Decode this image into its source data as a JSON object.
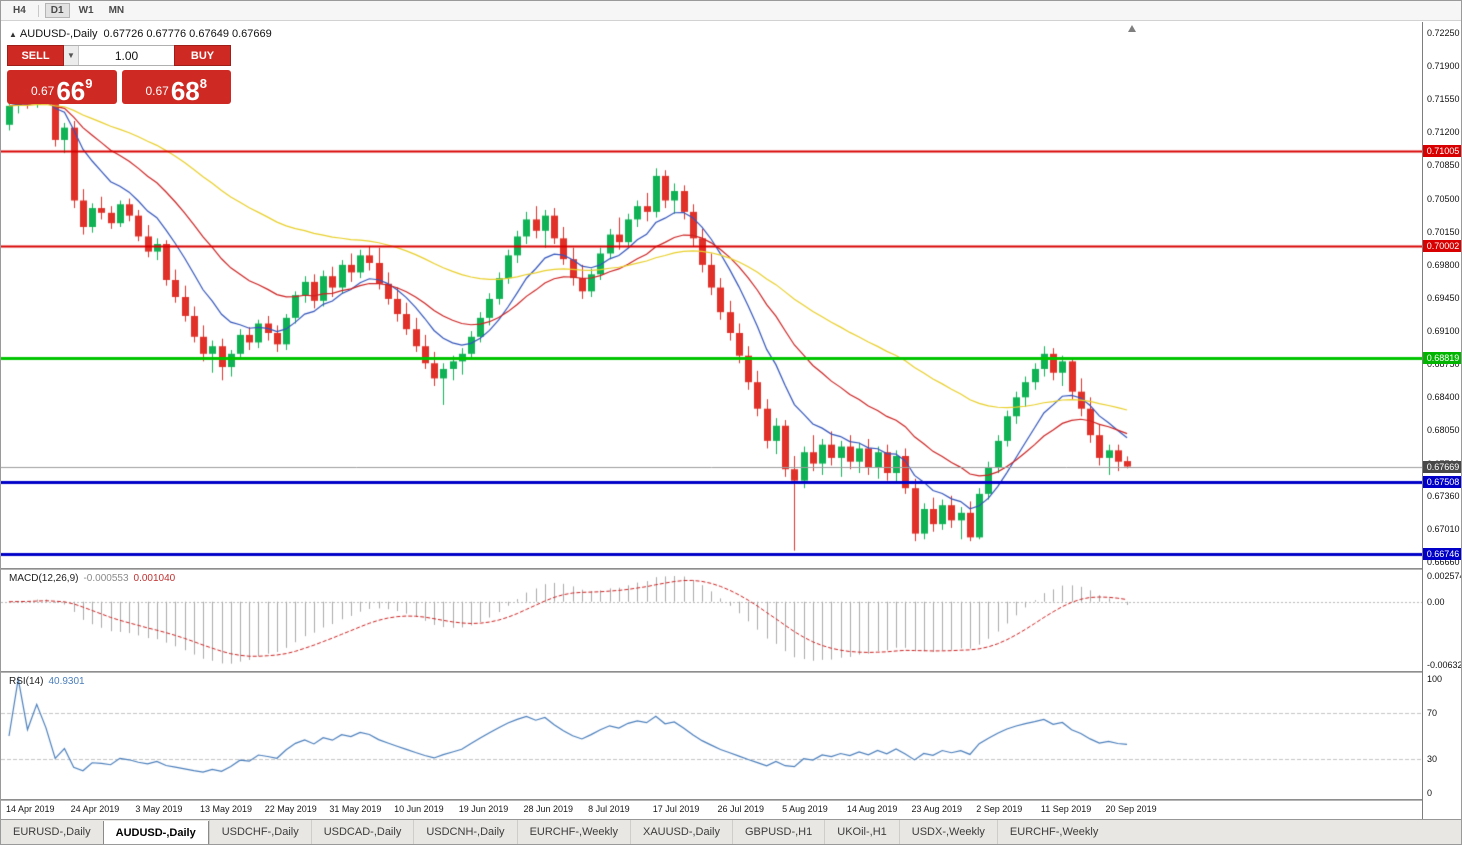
{
  "toolbar": {
    "timeframes": [
      "H4",
      "D1",
      "W1",
      "MN"
    ],
    "active": "D1"
  },
  "header": {
    "symbol": "AUDUSD-,Daily",
    "ohlc": "0.67726 0.67776 0.67649 0.67669"
  },
  "trade_panel": {
    "sell_label": "SELL",
    "buy_label": "BUY",
    "volume": "1.00",
    "sell_price_small": "0.67",
    "sell_price_big": "66",
    "sell_price_sup": "9",
    "buy_price_small": "0.67",
    "buy_price_big": "68",
    "buy_price_sup": "8"
  },
  "indicators": {
    "macd": {
      "name": "MACD(12,26,9)",
      "value_main": "-0.000553",
      "value_signal": "0.001040",
      "scale": [
        {
          "text": "0.0025745",
          "value": 0.0025745
        },
        {
          "text": "0.00",
          "value": 0
        },
        {
          "text": "-0.0063286",
          "value": -0.0063286
        }
      ]
    },
    "rsi": {
      "name": "RSI(14)",
      "value": "40.9301",
      "scale": [
        {
          "text": "100",
          "value": 100
        },
        {
          "text": "70",
          "value": 70
        },
        {
          "text": "30",
          "value": 30
        },
        {
          "text": "0",
          "value": 0
        }
      ]
    }
  },
  "tabs": [
    "EURUSD-,Daily",
    "AUDUSD-,Daily",
    "USDCHF-,Daily",
    "USDCAD-,Daily",
    "USDCNH-,Daily",
    "EURCHF-,Weekly",
    "XAUUSD-,Daily",
    "GBPUSD-,H1",
    "UKOil-,H1",
    "USDX-,Weekly",
    "EURCHF-,Weekly"
  ],
  "active_tab_index": 1,
  "chart_data": {
    "type": "candlestick",
    "symbol": "AUDUSD-",
    "timeframe": "Daily",
    "y_range": [
      0.6666,
      0.7225
    ],
    "price_scale_ticks": [
      "0.72250",
      "0.71900",
      "0.71550",
      "0.71200",
      "0.70850",
      "0.70500",
      "0.70150",
      "0.69800",
      "0.69450",
      "0.69100",
      "0.68750",
      "0.68400",
      "0.68050",
      "0.67700",
      "0.67360",
      "0.67010",
      "0.66660"
    ],
    "hlines": [
      {
        "value": 0.71005,
        "color": "#d80000",
        "width": 2,
        "badge": "0.71005",
        "badge_bg": "#d80000"
      },
      {
        "value": 0.70002,
        "color": "#d80000",
        "width": 2,
        "badge": "0.70002",
        "badge_bg": "#d80000"
      },
      {
        "value": 0.68819,
        "color": "#00c400",
        "width": 3,
        "badge": "0.68819",
        "badge_bg": "#00b400"
      },
      {
        "value": 0.67508,
        "color": "#0000c8",
        "width": 3,
        "badge": "0.67508",
        "badge_bg": "#0000c8"
      },
      {
        "value": 0.66746,
        "color": "#0000c8",
        "width": 3,
        "badge": "0.66746",
        "badge_bg": "#0000c8"
      }
    ],
    "current_price": {
      "value": 0.67669,
      "badge": "0.67669",
      "badge_bg": "#484848",
      "line_color": "#9c9c9c"
    },
    "moving_averages": [
      {
        "period": 9,
        "method": "ema",
        "color": "#3355bb"
      },
      {
        "period": 20,
        "method": "ema",
        "color": "#cc2222"
      },
      {
        "period": 50,
        "method": "ema",
        "color": "#e8cf2a"
      }
    ],
    "macd": {
      "fast": 12,
      "slow": 26,
      "signal": 9,
      "range": [
        -0.0063286,
        0.0025745
      ],
      "hist_color": "#a9a9a9",
      "signal_color": "#cc2222"
    },
    "rsi": {
      "period": 14,
      "levels": [
        70,
        30
      ],
      "range": [
        0,
        100
      ],
      "current": 40.9301,
      "line_color": "#4a7ebb"
    },
    "colors": {
      "up": "#0fb255",
      "down": "#e03028"
    },
    "date_labels": [
      {
        "index": 0,
        "label": "14 Apr 2019"
      },
      {
        "index": 7,
        "label": "24 Apr 2019"
      },
      {
        "index": 14,
        "label": "3 May 2019"
      },
      {
        "index": 21,
        "label": "13 May 2019"
      },
      {
        "index": 28,
        "label": "22 May 2019"
      },
      {
        "index": 35,
        "label": "31 May 2019"
      },
      {
        "index": 42,
        "label": "10 Jun 2019"
      },
      {
        "index": 49,
        "label": "19 Jun 2019"
      },
      {
        "index": 56,
        "label": "28 Jun 2019"
      },
      {
        "index": 63,
        "label": "8 Jul 2019"
      },
      {
        "index": 70,
        "label": "17 Jul 2019"
      },
      {
        "index": 77,
        "label": "26 Jul 2019"
      },
      {
        "index": 84,
        "label": "5 Aug 2019"
      },
      {
        "index": 91,
        "label": "14 Aug 2019"
      },
      {
        "index": 98,
        "label": "23 Aug 2019"
      },
      {
        "index": 105,
        "label": "2 Sep 2019"
      },
      {
        "index": 112,
        "label": "11 Sep 2019"
      },
      {
        "index": 119,
        "label": "20 Sep 2019"
      }
    ],
    "ohlc": [
      [
        0.7128,
        0.7152,
        0.7122,
        0.7148
      ],
      [
        0.7148,
        0.7162,
        0.714,
        0.7158
      ],
      [
        0.7158,
        0.7165,
        0.7145,
        0.715
      ],
      [
        0.715,
        0.7172,
        0.7146,
        0.7168
      ],
      [
        0.7168,
        0.7176,
        0.715,
        0.7155
      ],
      [
        0.7155,
        0.716,
        0.7105,
        0.7112
      ],
      [
        0.7112,
        0.713,
        0.7098,
        0.7125
      ],
      [
        0.7125,
        0.7132,
        0.704,
        0.7048
      ],
      [
        0.7048,
        0.706,
        0.7012,
        0.702
      ],
      [
        0.702,
        0.7045,
        0.7014,
        0.704
      ],
      [
        0.704,
        0.7052,
        0.7028,
        0.7035
      ],
      [
        0.7035,
        0.7042,
        0.7018,
        0.7024
      ],
      [
        0.7024,
        0.7048,
        0.702,
        0.7044
      ],
      [
        0.7044,
        0.705,
        0.7026,
        0.7032
      ],
      [
        0.7032,
        0.7038,
        0.7005,
        0.701
      ],
      [
        0.701,
        0.7022,
        0.6988,
        0.6994
      ],
      [
        0.6994,
        0.7008,
        0.6985,
        0.7002
      ],
      [
        0.7002,
        0.7006,
        0.6958,
        0.6964
      ],
      [
        0.6964,
        0.6975,
        0.694,
        0.6946
      ],
      [
        0.6946,
        0.6958,
        0.692,
        0.6926
      ],
      [
        0.6926,
        0.6936,
        0.6898,
        0.6904
      ],
      [
        0.6904,
        0.6916,
        0.6878,
        0.6886
      ],
      [
        0.6886,
        0.69,
        0.6866,
        0.6894
      ],
      [
        0.6894,
        0.6902,
        0.6858,
        0.6872
      ],
      [
        0.6872,
        0.689,
        0.6862,
        0.6886
      ],
      [
        0.6886,
        0.6912,
        0.688,
        0.6906
      ],
      [
        0.6906,
        0.6914,
        0.689,
        0.6898
      ],
      [
        0.6898,
        0.6922,
        0.6892,
        0.6918
      ],
      [
        0.6918,
        0.6926,
        0.69,
        0.6908
      ],
      [
        0.6908,
        0.6916,
        0.6888,
        0.6896
      ],
      [
        0.6896,
        0.6928,
        0.689,
        0.6924
      ],
      [
        0.6924,
        0.6952,
        0.6918,
        0.6948
      ],
      [
        0.6948,
        0.6968,
        0.694,
        0.6962
      ],
      [
        0.6962,
        0.697,
        0.6934,
        0.6942
      ],
      [
        0.6942,
        0.6974,
        0.6936,
        0.6968
      ],
      [
        0.6968,
        0.6978,
        0.6946,
        0.6956
      ],
      [
        0.6956,
        0.6985,
        0.695,
        0.698
      ],
      [
        0.698,
        0.6992,
        0.6962,
        0.6972
      ],
      [
        0.6972,
        0.6996,
        0.6966,
        0.699
      ],
      [
        0.699,
        0.7,
        0.6974,
        0.6982
      ],
      [
        0.6982,
        0.6998,
        0.6954,
        0.696
      ],
      [
        0.696,
        0.6972,
        0.6938,
        0.6944
      ],
      [
        0.6944,
        0.6956,
        0.692,
        0.6928
      ],
      [
        0.6928,
        0.694,
        0.6906,
        0.6912
      ],
      [
        0.6912,
        0.6924,
        0.6888,
        0.6894
      ],
      [
        0.6894,
        0.6906,
        0.687,
        0.6876
      ],
      [
        0.6876,
        0.6888,
        0.6852,
        0.686
      ],
      [
        0.686,
        0.6876,
        0.6832,
        0.687
      ],
      [
        0.687,
        0.6884,
        0.6858,
        0.6878
      ],
      [
        0.6878,
        0.6892,
        0.6864,
        0.6886
      ],
      [
        0.6886,
        0.691,
        0.688,
        0.6904
      ],
      [
        0.6904,
        0.693,
        0.6898,
        0.6924
      ],
      [
        0.6924,
        0.695,
        0.6916,
        0.6944
      ],
      [
        0.6944,
        0.6972,
        0.6938,
        0.6966
      ],
      [
        0.6966,
        0.6996,
        0.696,
        0.699
      ],
      [
        0.699,
        0.7016,
        0.6982,
        0.701
      ],
      [
        0.701,
        0.7036,
        0.7002,
        0.7028
      ],
      [
        0.7028,
        0.7042,
        0.7008,
        0.7016
      ],
      [
        0.7016,
        0.7038,
        0.6998,
        0.7032
      ],
      [
        0.7032,
        0.704,
        0.7002,
        0.7008
      ],
      [
        0.7008,
        0.702,
        0.698,
        0.6986
      ],
      [
        0.6986,
        0.6998,
        0.6958,
        0.6966
      ],
      [
        0.6966,
        0.698,
        0.6944,
        0.6952
      ],
      [
        0.6952,
        0.6976,
        0.6946,
        0.697
      ],
      [
        0.697,
        0.6998,
        0.6964,
        0.6992
      ],
      [
        0.6992,
        0.7018,
        0.6986,
        0.7012
      ],
      [
        0.7012,
        0.703,
        0.6996,
        0.7004
      ],
      [
        0.7004,
        0.7034,
        0.6998,
        0.7028
      ],
      [
        0.7028,
        0.7048,
        0.702,
        0.7042
      ],
      [
        0.7042,
        0.7056,
        0.7026,
        0.7036
      ],
      [
        0.7036,
        0.7082,
        0.703,
        0.7074
      ],
      [
        0.7074,
        0.708,
        0.704,
        0.7048
      ],
      [
        0.7048,
        0.7066,
        0.7034,
        0.7058
      ],
      [
        0.7058,
        0.7064,
        0.7028,
        0.7036
      ],
      [
        0.7036,
        0.7044,
        0.7,
        0.7008
      ],
      [
        0.7008,
        0.7018,
        0.6972,
        0.698
      ],
      [
        0.698,
        0.6992,
        0.6948,
        0.6956
      ],
      [
        0.6956,
        0.6966,
        0.6922,
        0.693
      ],
      [
        0.693,
        0.6942,
        0.69,
        0.6908
      ],
      [
        0.6908,
        0.6918,
        0.6876,
        0.6884
      ],
      [
        0.6884,
        0.6894,
        0.6848,
        0.6856
      ],
      [
        0.6856,
        0.6868,
        0.682,
        0.6828
      ],
      [
        0.6828,
        0.6838,
        0.6786,
        0.6794
      ],
      [
        0.6794,
        0.6818,
        0.678,
        0.681
      ],
      [
        0.681,
        0.6816,
        0.6756,
        0.6764
      ],
      [
        0.6764,
        0.6778,
        0.6678,
        0.6752
      ],
      [
        0.6752,
        0.6788,
        0.6744,
        0.6782
      ],
      [
        0.6782,
        0.68,
        0.6762,
        0.677
      ],
      [
        0.677,
        0.6796,
        0.6758,
        0.679
      ],
      [
        0.679,
        0.6804,
        0.6768,
        0.6776
      ],
      [
        0.6776,
        0.6794,
        0.6756,
        0.6788
      ],
      [
        0.6788,
        0.68,
        0.6764,
        0.6772
      ],
      [
        0.6772,
        0.6792,
        0.676,
        0.6786
      ],
      [
        0.6786,
        0.6796,
        0.6758,
        0.6766
      ],
      [
        0.6766,
        0.6788,
        0.6754,
        0.6782
      ],
      [
        0.6782,
        0.679,
        0.6752,
        0.676
      ],
      [
        0.676,
        0.6784,
        0.675,
        0.6778
      ],
      [
        0.6778,
        0.6786,
        0.6738,
        0.6744
      ],
      [
        0.6744,
        0.6754,
        0.6688,
        0.6696
      ],
      [
        0.6696,
        0.6728,
        0.669,
        0.6722
      ],
      [
        0.6722,
        0.6734,
        0.6698,
        0.6706
      ],
      [
        0.6706,
        0.6732,
        0.67,
        0.6726
      ],
      [
        0.6726,
        0.6736,
        0.6702,
        0.671
      ],
      [
        0.671,
        0.6724,
        0.669,
        0.6718
      ],
      [
        0.6718,
        0.673,
        0.6688,
        0.6692
      ],
      [
        0.6692,
        0.6744,
        0.669,
        0.6738
      ],
      [
        0.6738,
        0.6772,
        0.6732,
        0.6766
      ],
      [
        0.6766,
        0.68,
        0.676,
        0.6794
      ],
      [
        0.6794,
        0.6826,
        0.6788,
        0.682
      ],
      [
        0.682,
        0.6846,
        0.6812,
        0.684
      ],
      [
        0.684,
        0.6862,
        0.683,
        0.6856
      ],
      [
        0.6856,
        0.6876,
        0.6848,
        0.687
      ],
      [
        0.687,
        0.6894,
        0.6862,
        0.6886
      ],
      [
        0.6886,
        0.6892,
        0.6858,
        0.6866
      ],
      [
        0.6866,
        0.6884,
        0.6852,
        0.6878
      ],
      [
        0.6878,
        0.6882,
        0.6838,
        0.6846
      ],
      [
        0.6846,
        0.686,
        0.682,
        0.6828
      ],
      [
        0.6828,
        0.684,
        0.6792,
        0.68
      ],
      [
        0.68,
        0.6812,
        0.6768,
        0.6776
      ],
      [
        0.6776,
        0.679,
        0.6758,
        0.6784
      ],
      [
        0.6784,
        0.679,
        0.6762,
        0.6772
      ],
      [
        0.67726,
        0.67776,
        0.67649,
        0.67669
      ]
    ]
  }
}
